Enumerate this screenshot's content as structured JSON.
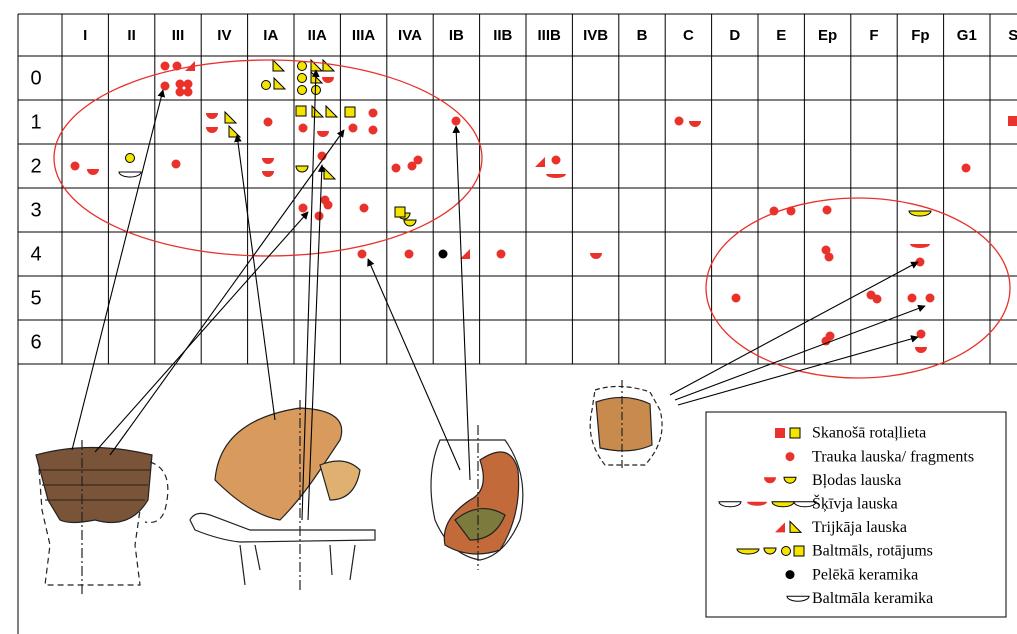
{
  "table": {
    "column_headers": [
      "I",
      "II",
      "III",
      "IV",
      "IA",
      "IIA",
      "IIIA",
      "IVA",
      "IB",
      "IIB",
      "IIIB",
      "IVB",
      "B",
      "C",
      "D",
      "E",
      "Ep",
      "F",
      "Fp",
      "G1",
      "S"
    ],
    "row_labels": [
      "0",
      "1",
      "2",
      "3",
      "4",
      "5",
      "6"
    ]
  },
  "legend": {
    "items": [
      "Skanošā rotaļlieta",
      "Trauka lauska/ fragments",
      "Bļodas lauska",
      "Šķīvja lauska",
      "Trijkāja lauska",
      "Baltmāls, rotājums",
      "Pelēkā keramika",
      "Baltmāla keramika"
    ]
  }
}
